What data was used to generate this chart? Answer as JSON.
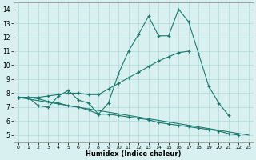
{
  "xlabel": "Humidex (Indice chaleur)",
  "x": [
    0,
    1,
    2,
    3,
    4,
    5,
    6,
    7,
    8,
    9,
    10,
    11,
    12,
    13,
    14,
    15,
    16,
    17,
    18,
    19,
    20,
    21,
    22,
    23
  ],
  "line1": [
    7.7,
    7.7,
    7.1,
    7.0,
    7.8,
    8.2,
    7.5,
    7.3,
    6.5,
    7.3,
    9.4,
    11.0,
    12.2,
    13.5,
    12.1,
    12.1,
    14.0,
    13.1,
    10.8,
    8.5,
    7.3,
    6.4,
    null,
    null
  ],
  "line2": [
    7.7,
    7.7,
    7.7,
    7.8,
    7.9,
    8.0,
    8.0,
    7.9,
    7.9,
    8.3,
    8.7,
    9.1,
    9.5,
    9.9,
    10.3,
    10.6,
    10.9,
    11.0,
    null,
    null,
    null,
    null,
    null,
    null
  ],
  "line3": [
    7.7,
    7.7,
    7.6,
    7.4,
    7.3,
    7.1,
    7.0,
    6.8,
    6.5,
    6.5,
    6.4,
    6.3,
    6.2,
    6.1,
    5.9,
    5.8,
    5.7,
    5.6,
    5.5,
    5.4,
    5.3,
    5.1,
    5.0,
    null
  ],
  "line4_x": [
    0,
    23
  ],
  "line4_y": [
    7.7,
    5.0
  ],
  "ylim": [
    4.5,
    14.5
  ],
  "xlim": [
    -0.5,
    23.5
  ],
  "yticks": [
    5,
    6,
    7,
    8,
    9,
    10,
    11,
    12,
    13,
    14
  ],
  "xticks": [
    0,
    1,
    2,
    3,
    4,
    5,
    6,
    7,
    8,
    9,
    10,
    11,
    12,
    13,
    14,
    15,
    16,
    17,
    18,
    19,
    20,
    21,
    22,
    23
  ],
  "line_color": "#1a7a6e",
  "bg_color": "#d8f0f0",
  "grid_color": "#b0d8d8",
  "figsize": [
    3.2,
    2.0
  ],
  "dpi": 100
}
